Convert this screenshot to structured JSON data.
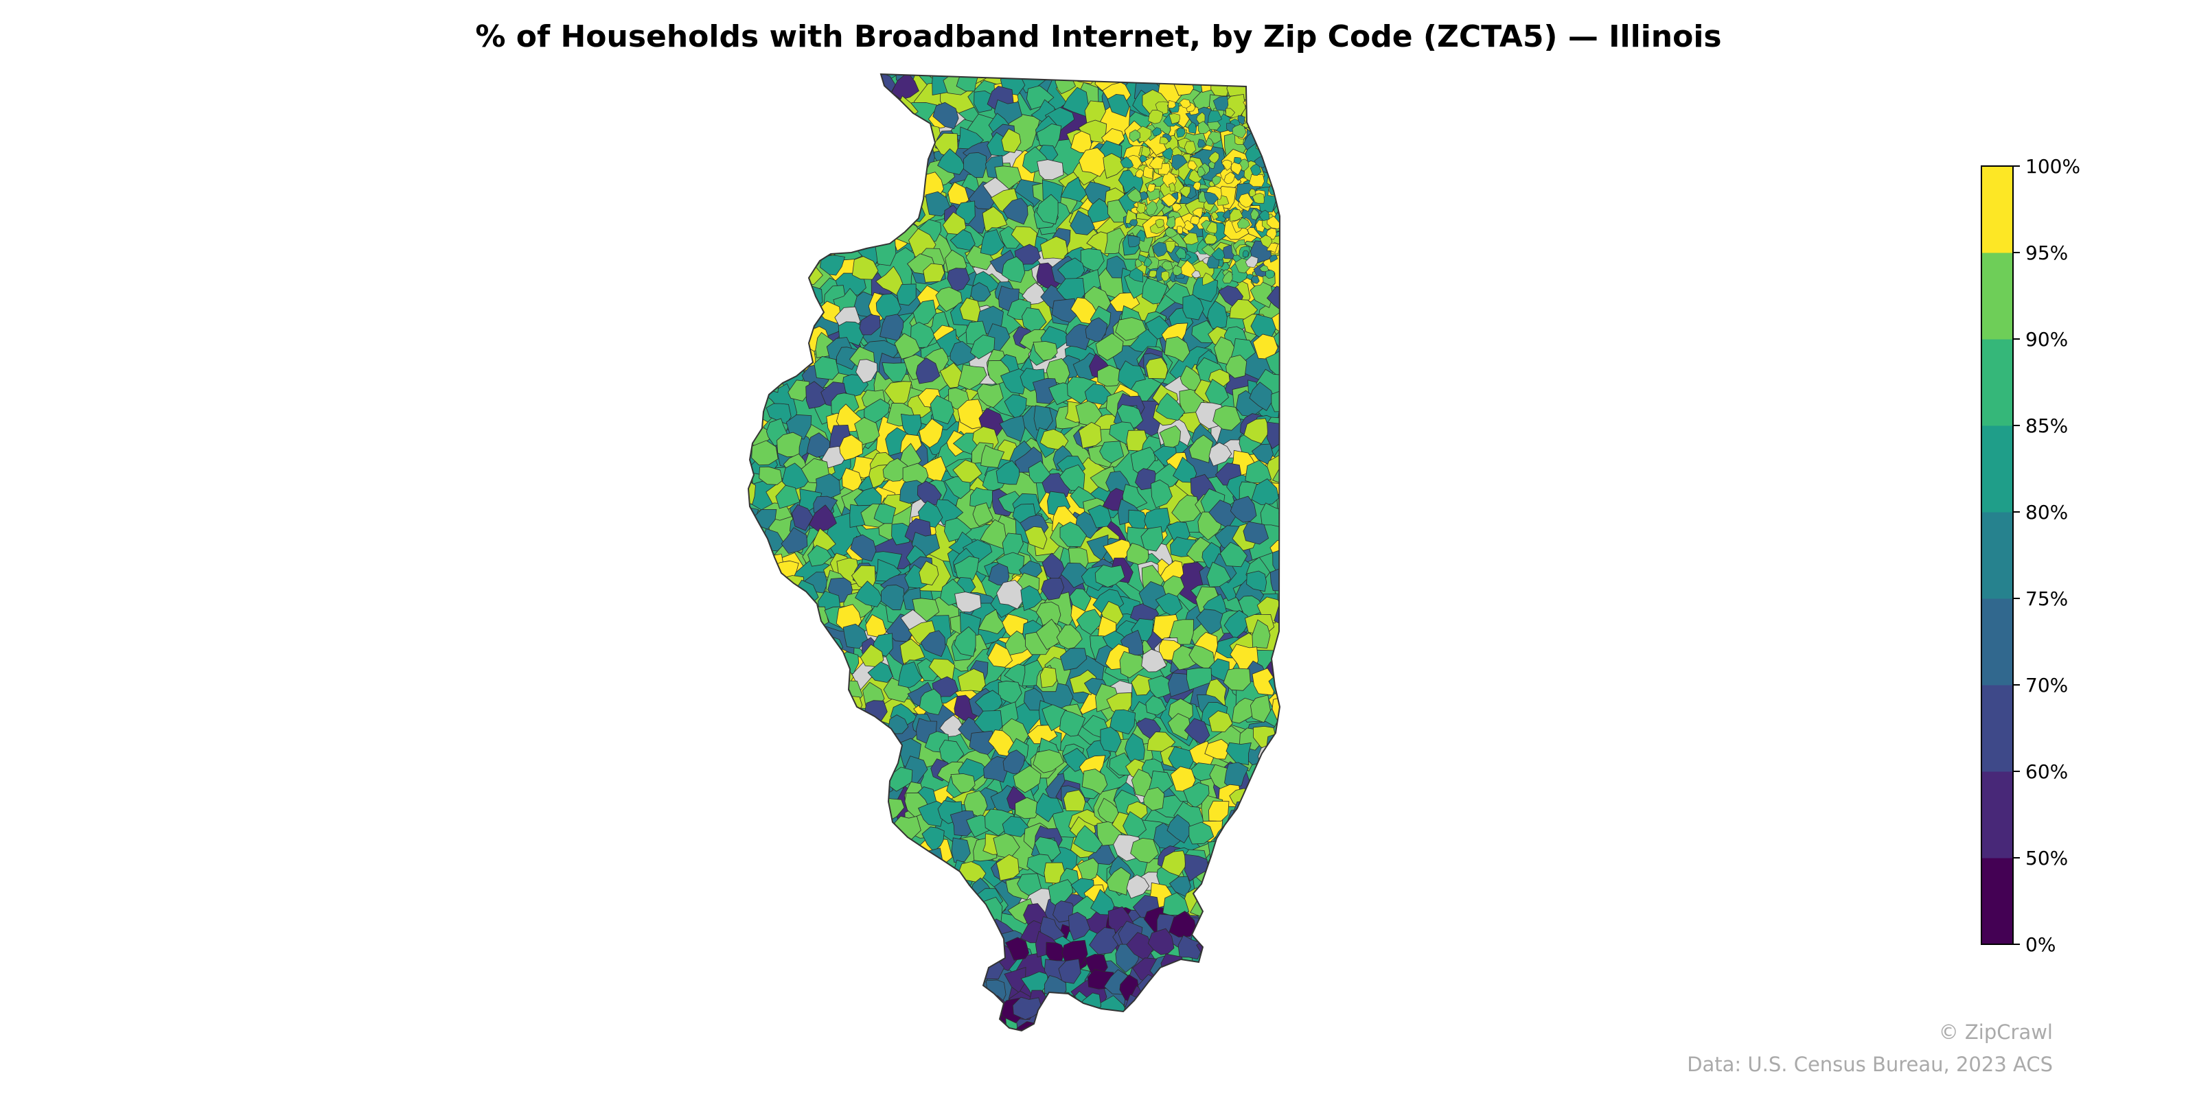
{
  "title": "% of Households with Broadband Internet, by Zip Code (ZCTA5) — Illinois",
  "legend": {
    "ticks": [
      "0%",
      "50%",
      "60%",
      "70%",
      "75%",
      "80%",
      "85%",
      "90%",
      "95%",
      "100%"
    ],
    "bins": [
      {
        "range": "0–50%",
        "color": "#440154"
      },
      {
        "range": "50–60%",
        "color": "#482878"
      },
      {
        "range": "60–70%",
        "color": "#3e4989"
      },
      {
        "range": "70–75%",
        "color": "#31688e"
      },
      {
        "range": "75–80%",
        "color": "#26828e"
      },
      {
        "range": "80–85%",
        "color": "#1f9e89"
      },
      {
        "range": "85–90%",
        "color": "#35b779"
      },
      {
        "range": "90–95%",
        "color": "#6ece58"
      },
      {
        "range": "95–100%",
        "color": "#b5de2b"
      },
      {
        "range": "100%",
        "color": "#fde725"
      }
    ],
    "no_data_color": "#d3d3d3"
  },
  "credit": "© ZipCrawl",
  "source": "Data: U.S. Census Bureau, 2023 ACS"
}
